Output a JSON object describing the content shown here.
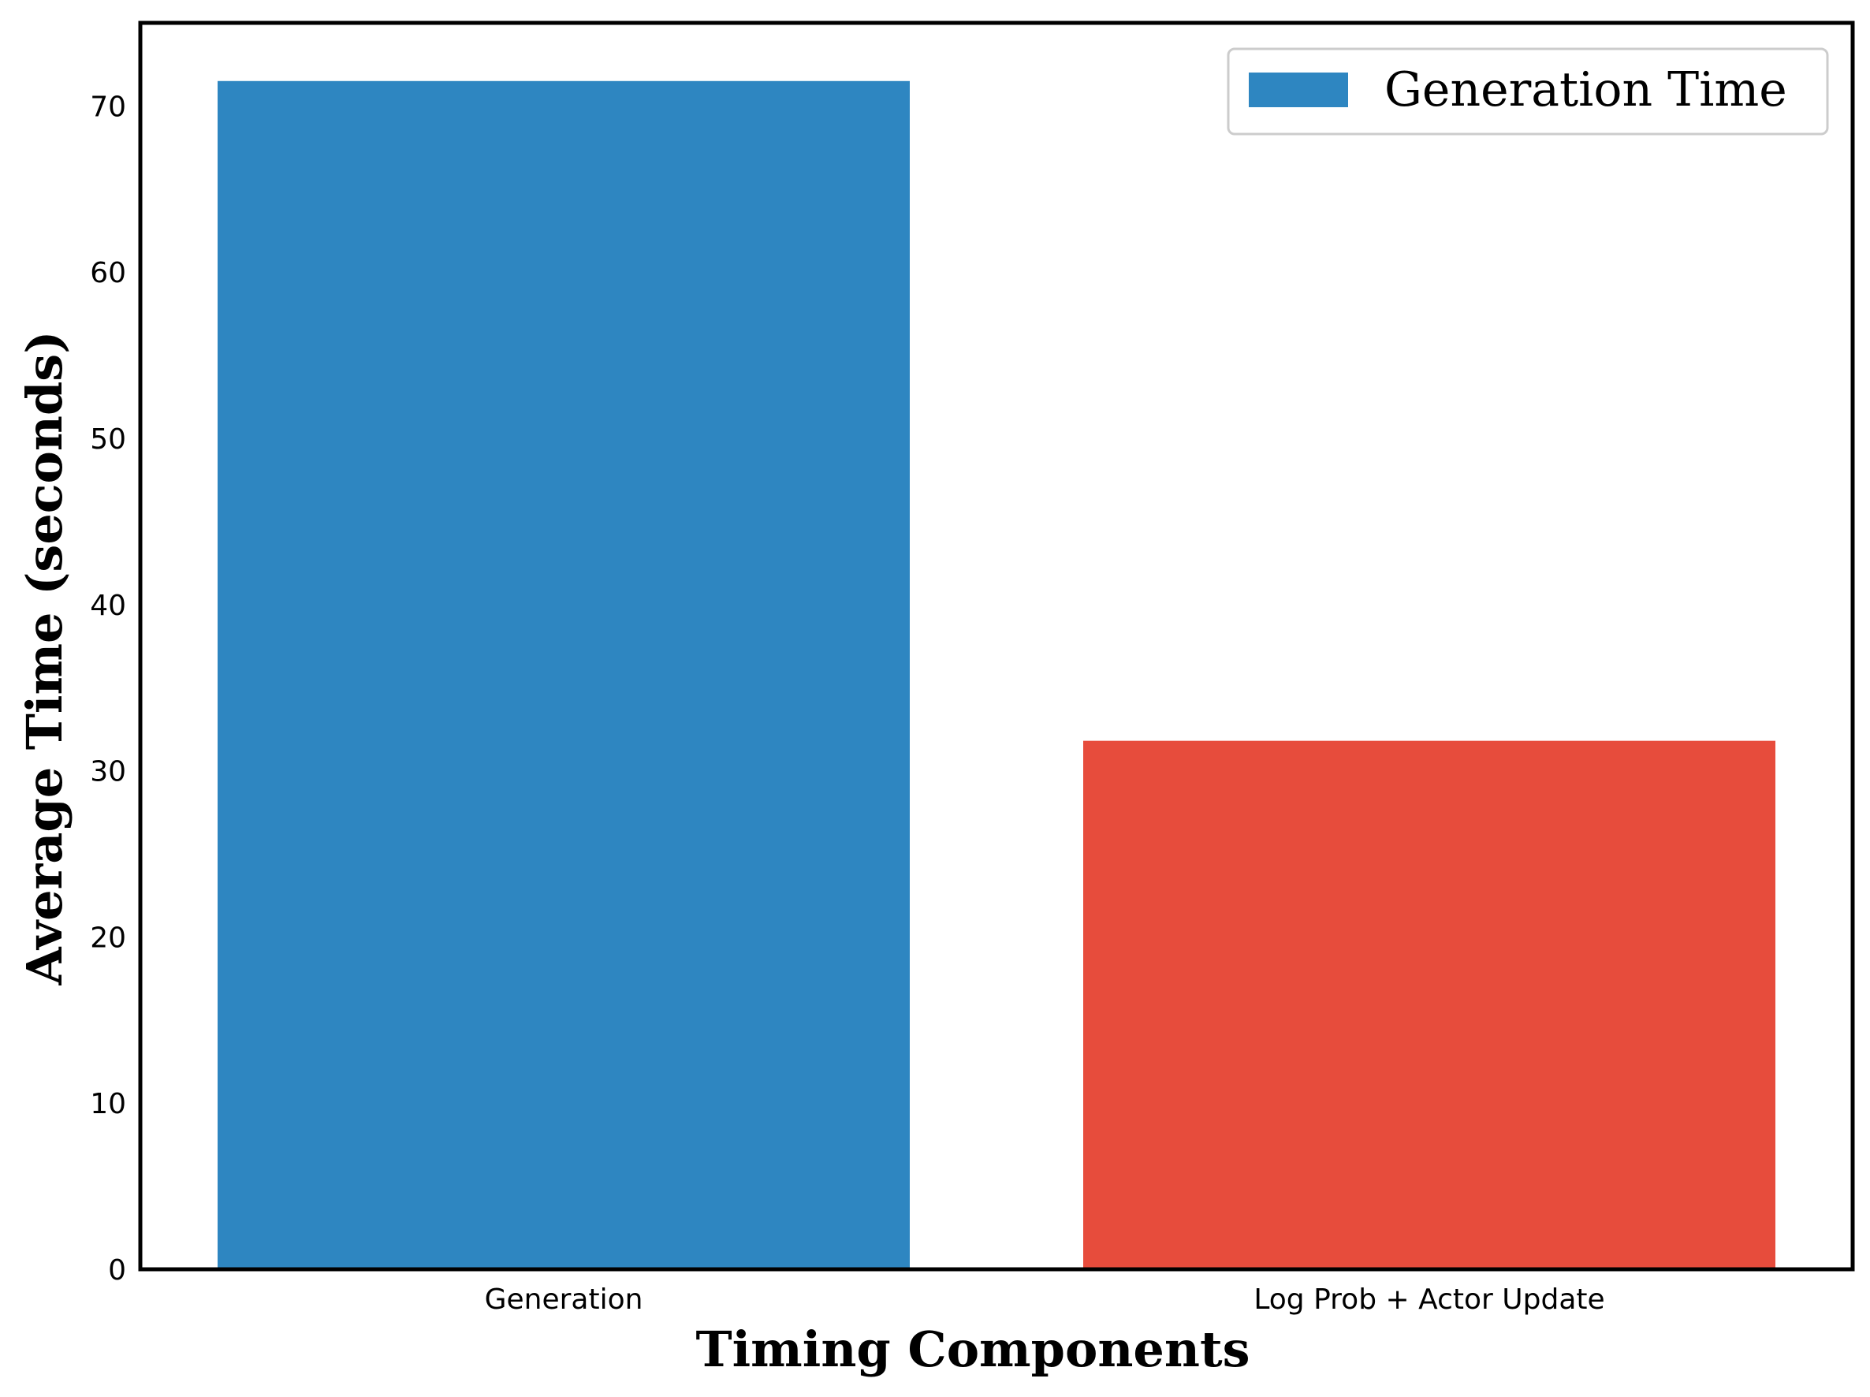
{
  "chart_data": {
    "type": "bar",
    "categories": [
      "Generation",
      "Log Prob + Actor Update"
    ],
    "values": [
      71.5,
      31.8
    ],
    "bar_colors": [
      "#2e86c1",
      "#e74c3c"
    ],
    "xlabel": "Timing Components",
    "ylabel": "Average Time (seconds)",
    "ylim": [
      0,
      75
    ],
    "yticks": [
      0,
      10,
      20,
      30,
      40,
      50,
      60,
      70
    ],
    "grid": false,
    "legend": {
      "position": "top-right",
      "entries": [
        {
          "label": "Generation Time",
          "color": "#2e86c1"
        }
      ]
    }
  }
}
